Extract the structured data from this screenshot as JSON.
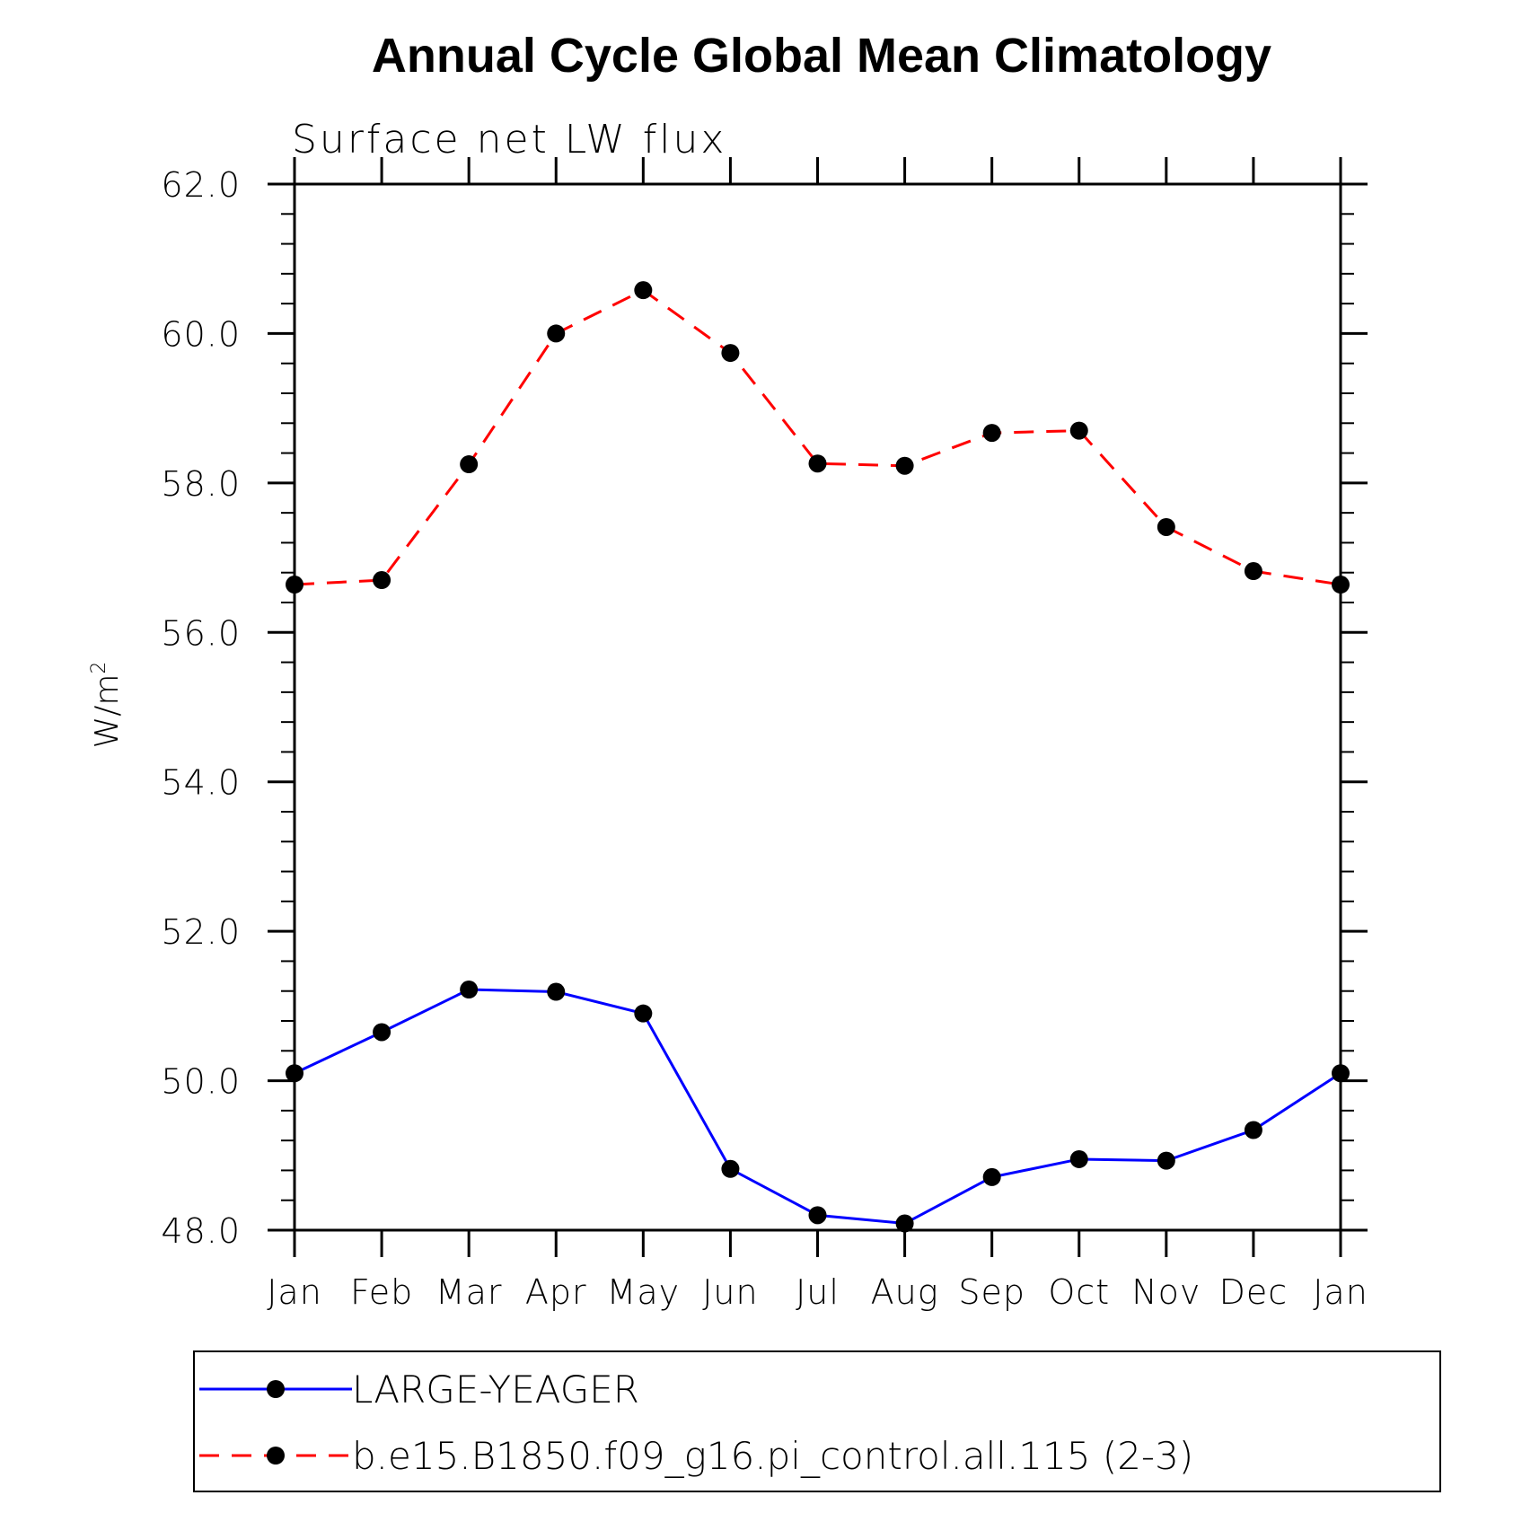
{
  "chart_data": {
    "type": "line",
    "title": "Annual Cycle Global Mean Climatology",
    "subtitle": "Surface net LW flux",
    "ylabel": "W/m",
    "ylabel_sup": "2",
    "xlabel": "",
    "categories": [
      "Jan",
      "Feb",
      "Mar",
      "Apr",
      "May",
      "Jun",
      "Jul",
      "Aug",
      "Sep",
      "Oct",
      "Nov",
      "Dec",
      "Jan"
    ],
    "ylim": [
      48.0,
      62.0
    ],
    "yticks": [
      "48.0",
      "50.0",
      "52.0",
      "54.0",
      "56.0",
      "58.0",
      "60.0",
      "62.0"
    ],
    "grid": false,
    "legend_position": "bottom",
    "series": [
      {
        "name": "LARGE-YEAGER",
        "color": "#0000ff",
        "dash": "solid",
        "marker": "filled-circle",
        "values": [
          50.1,
          50.65,
          51.22,
          51.19,
          50.9,
          48.82,
          48.2,
          48.09,
          48.71,
          48.95,
          48.93,
          49.34,
          50.1
        ]
      },
      {
        "name": "b.e15.B1850.f09_g16.pi_control.all.115 (2-3)",
        "color": "#ff0000",
        "dash": "dashed",
        "marker": "filled-circle",
        "values": [
          56.64,
          56.7,
          58.25,
          60.0,
          60.58,
          59.74,
          58.26,
          58.23,
          58.67,
          58.7,
          57.41,
          56.82,
          56.64
        ]
      }
    ]
  }
}
